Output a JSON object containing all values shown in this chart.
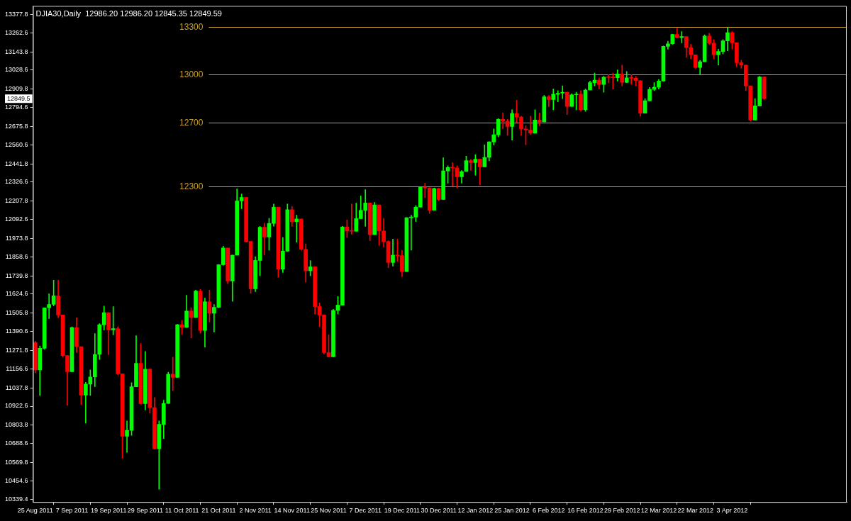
{
  "chart_data": {
    "type": "candlestick",
    "title": "DJIA30,Daily  12986.20 12986.20 12845.35 12849.59",
    "categories": [
      "25 Aug 2011",
      null,
      null,
      null,
      null,
      null,
      null,
      null,
      "7 Sep 2011",
      null,
      null,
      null,
      null,
      null,
      null,
      null,
      "19 Sep 2011",
      null,
      null,
      null,
      null,
      null,
      null,
      null,
      "29 Sep 2011",
      null,
      null,
      null,
      null,
      null,
      null,
      null,
      "11 Oct 2011",
      null,
      null,
      null,
      null,
      null,
      null,
      null,
      "21 Oct 2011",
      null,
      null,
      null,
      null,
      null,
      null,
      null,
      "2 Nov 2011",
      null,
      null,
      null,
      null,
      null,
      null,
      null,
      "14 Nov 2011",
      null,
      null,
      null,
      null,
      null,
      null,
      null,
      "25 Nov 2011",
      null,
      null,
      null,
      null,
      null,
      null,
      null,
      "7 Dec 2011",
      null,
      null,
      null,
      null,
      null,
      null,
      null,
      "19 Dec 2011",
      null,
      null,
      null,
      null,
      null,
      null,
      null,
      "30 Dec 2011",
      null,
      null,
      null,
      null,
      null,
      null,
      null,
      "12 Jan 2012",
      null,
      null,
      null,
      null,
      null,
      null,
      null,
      "25 Jan 2012",
      null,
      null,
      null,
      null,
      null,
      null,
      null,
      "6 Feb 2012",
      null,
      null,
      null,
      null,
      null,
      null,
      null,
      "16 Feb 2012",
      null,
      null,
      null,
      null,
      null,
      null,
      null,
      "29 Feb 2012",
      null,
      null,
      null,
      null,
      null,
      null,
      null,
      "12 Mar 2012",
      null,
      null,
      null,
      null,
      null,
      null,
      null,
      "22 Mar 2012",
      null,
      null,
      null,
      null,
      null,
      null,
      null,
      "3 Apr 2012",
      null,
      null,
      null,
      null,
      null,
      null,
      null
    ],
    "ohlc": [
      [
        11321,
        11330,
        11132,
        11150
      ],
      [
        11150,
        11300,
        10990,
        11285
      ],
      [
        11285,
        11540,
        11280,
        11539
      ],
      [
        11539,
        11627,
        11472,
        11560
      ],
      [
        11560,
        11712,
        11550,
        11614
      ],
      [
        11614,
        11712,
        11476,
        11494
      ],
      [
        11494,
        11494,
        11230,
        11240
      ],
      [
        11240,
        11240,
        10928,
        11139
      ],
      [
        11139,
        11420,
        11139,
        11415
      ],
      [
        11415,
        11476,
        11260,
        11296
      ],
      [
        11296,
        11296,
        10933,
        10992
      ],
      [
        10992,
        11072,
        10816,
        11061
      ],
      [
        11061,
        11150,
        10990,
        11106
      ],
      [
        11106,
        11378,
        11045,
        11247
      ],
      [
        11247,
        11440,
        11215,
        11433
      ],
      [
        11433,
        11550,
        11400,
        11509
      ],
      [
        11509,
        11509,
        11245,
        11401
      ],
      [
        11401,
        11546,
        11370,
        11409
      ],
      [
        11409,
        11420,
        11120,
        11125
      ],
      [
        11125,
        11125,
        10597,
        10734
      ],
      [
        10734,
        10830,
        10633,
        10771
      ],
      [
        10771,
        11070,
        10740,
        11044
      ],
      [
        11044,
        11364,
        11044,
        11191
      ],
      [
        11191,
        11315,
        10935,
        10939
      ],
      [
        10939,
        11266,
        10900,
        11154
      ],
      [
        11154,
        11154,
        10880,
        10913
      ],
      [
        10913,
        10977,
        10653,
        10655
      ],
      [
        10655,
        10830,
        10402,
        10809
      ],
      [
        10809,
        10960,
        10720,
        10940
      ],
      [
        10940,
        11135,
        10940,
        11123
      ],
      [
        11123,
        11230,
        11020,
        11103
      ],
      [
        11103,
        11435,
        11103,
        11433
      ],
      [
        11433,
        11461,
        11372,
        11416
      ],
      [
        11416,
        11618,
        11416,
        11519
      ],
      [
        11519,
        11540,
        11350,
        11478
      ],
      [
        11478,
        11650,
        11478,
        11644
      ],
      [
        11644,
        11655,
        11380,
        11397
      ],
      [
        11397,
        11600,
        11293,
        11577
      ],
      [
        11577,
        11650,
        11450,
        11505
      ],
      [
        11505,
        11560,
        11387,
        11542
      ],
      [
        11542,
        11810,
        11540,
        11809
      ],
      [
        11809,
        11925,
        11805,
        11914
      ],
      [
        11914,
        11914,
        11690,
        11707
      ],
      [
        11707,
        11870,
        11580,
        11869
      ],
      [
        11869,
        12284,
        11869,
        12209
      ],
      [
        12209,
        12253,
        12160,
        12231
      ],
      [
        12231,
        12231,
        11950,
        11955
      ],
      [
        11955,
        11955,
        11630,
        11658
      ],
      [
        11658,
        11860,
        11640,
        11836
      ],
      [
        11836,
        12050,
        11740,
        12044
      ],
      [
        12044,
        12070,
        11870,
        11983
      ],
      [
        11983,
        12100,
        11900,
        12068
      ],
      [
        12068,
        12190,
        12050,
        12170
      ],
      [
        12170,
        12170,
        11730,
        11781
      ],
      [
        11781,
        11980,
        11760,
        11894
      ],
      [
        11894,
        12190,
        11894,
        12154
      ],
      [
        12154,
        12175,
        12050,
        12079
      ],
      [
        12079,
        12120,
        11950,
        12096
      ],
      [
        12096,
        12096,
        11900,
        11906
      ],
      [
        11906,
        11940,
        11700,
        11771
      ],
      [
        11771,
        11835,
        11740,
        11796
      ],
      [
        11796,
        11796,
        11500,
        11547
      ],
      [
        11547,
        11570,
        11420,
        11494
      ],
      [
        11494,
        11494,
        11250,
        11258
      ],
      [
        11258,
        11370,
        11232,
        11232
      ],
      [
        11232,
        11530,
        11232,
        11523
      ],
      [
        11523,
        11610,
        11500,
        11556
      ],
      [
        11556,
        12050,
        11556,
        12046
      ],
      [
        12046,
        12090,
        11980,
        12020
      ],
      [
        12020,
        12190,
        12000,
        12019
      ],
      [
        12019,
        12195,
        12019,
        12098
      ],
      [
        12098,
        12240,
        12098,
        12150
      ],
      [
        12150,
        12280,
        12050,
        12196
      ],
      [
        12196,
        12196,
        11960,
        11998
      ],
      [
        11998,
        12200,
        11998,
        12184
      ],
      [
        12184,
        12184,
        11930,
        12021
      ],
      [
        12021,
        12100,
        11920,
        11955
      ],
      [
        11955,
        11960,
        11790,
        11823
      ],
      [
        11823,
        11970,
        11800,
        11869
      ],
      [
        11869,
        11970,
        11830,
        11866
      ],
      [
        11866,
        11900,
        11735,
        11766
      ],
      [
        11766,
        12105,
        11766,
        12104
      ],
      [
        12104,
        12120,
        11900,
        12108
      ],
      [
        12108,
        12180,
        12080,
        12170
      ],
      [
        12170,
        12295,
        12170,
        12294
      ],
      [
        12294,
        12320,
        12230,
        12291
      ],
      [
        12291,
        12291,
        12130,
        12151
      ],
      [
        12151,
        12290,
        12151,
        12287
      ],
      [
        12287,
        12290,
        12210,
        12218
      ],
      [
        12218,
        12480,
        12218,
        12397
      ],
      [
        12397,
        12430,
        12320,
        12418
      ],
      [
        12418,
        12450,
        12300,
        12416
      ],
      [
        12416,
        12430,
        12290,
        12360
      ],
      [
        12360,
        12400,
        12320,
        12393
      ],
      [
        12393,
        12490,
        12393,
        12462
      ],
      [
        12462,
        12470,
        12400,
        12449
      ],
      [
        12449,
        12500,
        12370,
        12471
      ],
      [
        12471,
        12471,
        12310,
        12422
      ],
      [
        12422,
        12560,
        12422,
        12482
      ],
      [
        12482,
        12580,
        12460,
        12579
      ],
      [
        12579,
        12660,
        12560,
        12624
      ],
      [
        12624,
        12725,
        12610,
        12720
      ],
      [
        12720,
        12760,
        12660,
        12709
      ],
      [
        12709,
        12720,
        12620,
        12676
      ],
      [
        12676,
        12780,
        12590,
        12757
      ],
      [
        12757,
        12840,
        12700,
        12735
      ],
      [
        12735,
        12740,
        12620,
        12660
      ],
      [
        12660,
        12680,
        12560,
        12654
      ],
      [
        12654,
        12740,
        12625,
        12633
      ],
      [
        12633,
        12780,
        12633,
        12716
      ],
      [
        12716,
        12760,
        12680,
        12705
      ],
      [
        12705,
        12870,
        12705,
        12862
      ],
      [
        12862,
        12870,
        12800,
        12845
      ],
      [
        12845,
        12910,
        12780,
        12878
      ],
      [
        12878,
        12900,
        12830,
        12884
      ],
      [
        12884,
        12930,
        12850,
        12890
      ],
      [
        12890,
        12890,
        12750,
        12801
      ],
      [
        12801,
        12880,
        12801,
        12874
      ],
      [
        12874,
        12890,
        12780,
        12878
      ],
      [
        12878,
        12900,
        12770,
        12781
      ],
      [
        12781,
        12910,
        12770,
        12904
      ],
      [
        12904,
        12960,
        12904,
        12950
      ],
      [
        12950,
        13010,
        12930,
        12966
      ],
      [
        12966,
        12980,
        12910,
        12939
      ],
      [
        12939,
        12990,
        12890,
        12985
      ],
      [
        12985,
        13000,
        12950,
        12983
      ],
      [
        12983,
        13010,
        12910,
        12981
      ],
      [
        12981,
        13030,
        12960,
        13005
      ],
      [
        13005,
        13060,
        12930,
        12952
      ],
      [
        12952,
        13020,
        12950,
        12980
      ],
      [
        12980,
        13000,
        12940,
        12978
      ],
      [
        12978,
        12990,
        12930,
        12963
      ],
      [
        12963,
        12963,
        12740,
        12759
      ],
      [
        12759,
        12850,
        12759,
        12837
      ],
      [
        12837,
        12920,
        12837,
        12908
      ],
      [
        12908,
        12950,
        12900,
        12922
      ],
      [
        12922,
        12970,
        12910,
        12960
      ],
      [
        12960,
        13180,
        12960,
        13178
      ],
      [
        13178,
        13210,
        13160,
        13194
      ],
      [
        13194,
        13255,
        13190,
        13253
      ],
      [
        13253,
        13290,
        13230,
        13233
      ],
      [
        13233,
        13270,
        13200,
        13239
      ],
      [
        13239,
        13239,
        13110,
        13170
      ],
      [
        13170,
        13190,
        13100,
        13125
      ],
      [
        13125,
        13125,
        13040,
        13046
      ],
      [
        13046,
        13090,
        13000,
        13081
      ],
      [
        13081,
        13250,
        13081,
        13242
      ],
      [
        13242,
        13260,
        13190,
        13198
      ],
      [
        13198,
        13220,
        13100,
        13126
      ],
      [
        13126,
        13160,
        13060,
        13146
      ],
      [
        13146,
        13220,
        13130,
        13212
      ],
      [
        13212,
        13297,
        13150,
        13264
      ],
      [
        13264,
        13270,
        13160,
        13200
      ],
      [
        13200,
        13200,
        13050,
        13075
      ],
      [
        13075,
        13090,
        13040,
        13060
      ],
      [
        13060,
        13060,
        12900,
        12930
      ],
      [
        12930,
        12930,
        12710,
        12716
      ],
      [
        12716,
        12850,
        12716,
        12805
      ],
      [
        12805,
        12990,
        12805,
        12986
      ],
      [
        12986,
        12986,
        12845,
        12850
      ]
    ],
    "colors": [
      "#ff0000",
      "#00ff00",
      "#00ff00",
      "#00ff00",
      "#00ff00",
      "#ff0000",
      "#ff0000",
      "#ff0000",
      "#00ff00",
      "#ff0000",
      "#ff0000",
      "#00ff00",
      "#00ff00",
      "#00ff00",
      "#00ff00",
      "#00ff00",
      "#ff0000",
      "#00ff00",
      "#ff0000",
      "#ff0000",
      "#00ff00",
      "#00ff00",
      "#00ff00",
      "#ff0000",
      "#00ff00",
      "#ff0000",
      "#ff0000",
      "#00ff00",
      "#00ff00",
      "#00ff00",
      "#ff0000",
      "#00ff00",
      "#ff0000",
      "#00ff00",
      "#ff0000",
      "#00ff00",
      "#ff0000",
      "#00ff00",
      "#ff0000",
      "#00ff00",
      "#00ff00",
      "#00ff00",
      "#ff0000",
      "#00ff00",
      "#00ff00",
      "#00ff00",
      "#ff0000",
      "#ff0000",
      "#00ff00",
      "#00ff00",
      "#ff0000",
      "#00ff00",
      "#00ff00",
      "#ff0000",
      "#00ff00",
      "#00ff00",
      "#ff0000",
      "#00ff00",
      "#ff0000",
      "#ff0000",
      "#00ff00",
      "#ff0000",
      "#ff0000",
      "#ff0000",
      "#ff0000",
      "#00ff00",
      "#00ff00",
      "#00ff00",
      "#ff0000",
      "#ff0000",
      "#00ff00",
      "#00ff00",
      "#00ff00",
      "#ff0000",
      "#00ff00",
      "#ff0000",
      "#ff0000",
      "#ff0000",
      "#00ff00",
      "#ff0000",
      "#ff0000",
      "#00ff00",
      "#00ff00",
      "#00ff00",
      "#00ff00",
      "#ff0000",
      "#ff0000",
      "#00ff00",
      "#ff0000",
      "#00ff00",
      "#00ff00",
      "#ff0000",
      "#ff0000",
      "#00ff00",
      "#00ff00",
      "#ff0000",
      "#00ff00",
      "#ff0000",
      "#00ff00",
      "#00ff00",
      "#00ff00",
      "#00ff00",
      "#ff0000",
      "#ff0000",
      "#00ff00",
      "#ff0000",
      "#ff0000",
      "#ff0000",
      "#ff0000",
      "#00ff00",
      "#ff0000",
      "#00ff00",
      "#ff0000",
      "#00ff00",
      "#00ff00",
      "#00ff00",
      "#ff0000",
      "#00ff00",
      "#00ff00",
      "#ff0000",
      "#00ff00",
      "#00ff00",
      "#00ff00",
      "#ff0000",
      "#00ff00",
      "#ff0000",
      "#ff0000",
      "#00ff00",
      "#ff0000",
      "#00ff00",
      "#ff0000",
      "#ff0000",
      "#ff0000",
      "#00ff00",
      "#00ff00",
      "#00ff00",
      "#00ff00",
      "#00ff00",
      "#00ff00",
      "#00ff00",
      "#ff0000",
      "#00ff00",
      "#ff0000",
      "#ff0000",
      "#ff0000",
      "#00ff00",
      "#00ff00",
      "#ff0000",
      "#ff0000",
      "#00ff00",
      "#00ff00",
      "#00ff00",
      "#ff0000",
      "#ff0000",
      "#ff0000",
      "#ff0000",
      "#ff0000",
      "#00ff00",
      "#00ff00",
      "#ff0000"
    ],
    "ylim": [
      10322,
      13431
    ],
    "yticks": [
      10339.4,
      10454.6,
      10569.8,
      10688.6,
      10803.8,
      10922.6,
      11037.8,
      11156.6,
      11271.8,
      11390.6,
      11505.8,
      11624.6,
      11739.8,
      11858.6,
      11973.8,
      12092.6,
      12207.8,
      12326.6,
      12441.8,
      12560.6,
      12675.8,
      12794.6,
      12909.8,
      13028.6,
      13143.8,
      13262.6,
      13377.8
    ],
    "ref_lines": [
      {
        "axis": "y",
        "value": 12300,
        "label": "12300",
        "color": "#c8a02a"
      },
      {
        "axis": "y",
        "value": 12700,
        "label": "12700",
        "color": "#c8a02a"
      },
      {
        "axis": "y",
        "value": 13000,
        "label": "13000",
        "color": "#c8a02a"
      },
      {
        "axis": "y",
        "value": 13300,
        "label": "13300",
        "color": "#c8a02a"
      }
    ],
    "annotations": [
      "12849.5"
    ]
  }
}
